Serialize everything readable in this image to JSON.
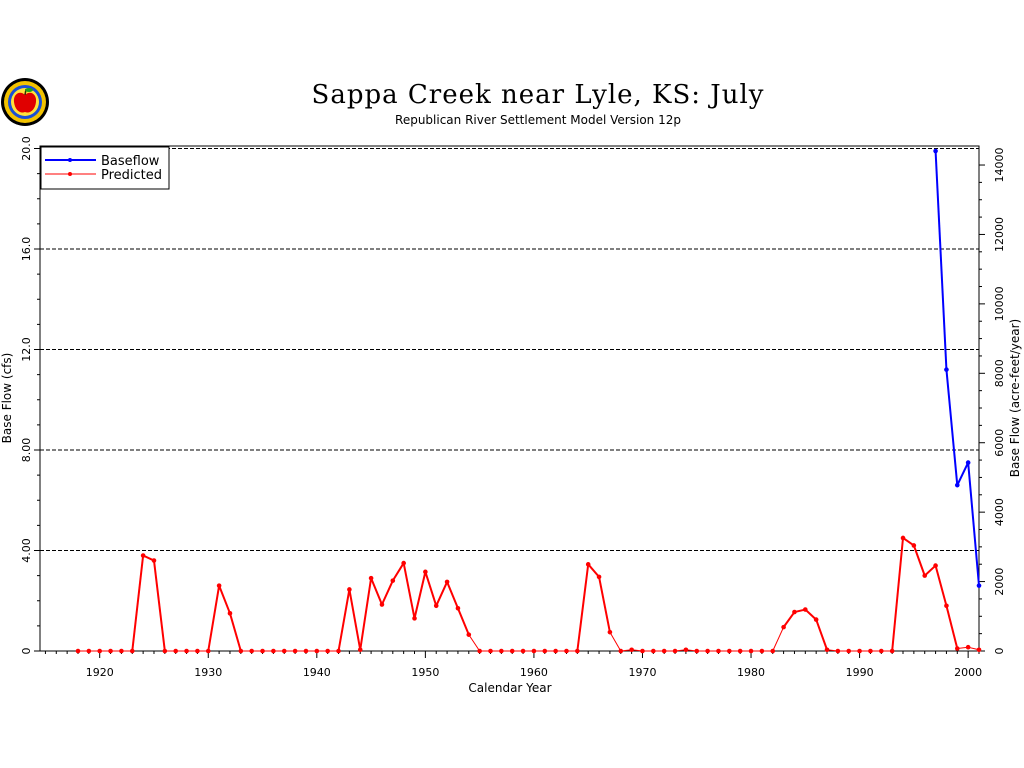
{
  "chart_data": {
    "type": "line",
    "title": "Sappa Creek near Lyle, KS: July",
    "subtitle": "Republican River Settlement Model Version 12p",
    "xlabel": "Calendar Year",
    "ylabel": "Base Flow (cfs)",
    "y2label": "Base Flow (acre-feet/year)",
    "xlim": [
      1914.5,
      2001
    ],
    "ylim": [
      0,
      20.1
    ],
    "y2lim": [
      0,
      14548
    ],
    "x_ticks": [
      "1920",
      "1930",
      "1940",
      "1950",
      "1960",
      "1970",
      "1980",
      "1990",
      "2000"
    ],
    "y_ticks": [
      "0",
      "4.00",
      "8.00",
      "12.0",
      "16.0",
      "20.0"
    ],
    "y2_ticks": [
      "0",
      "2000",
      "4000",
      "6000",
      "8000",
      "10000",
      "12000",
      "14000"
    ],
    "grid": "horizontal dashed at y ticks",
    "legend_position": "top-left",
    "series": [
      {
        "name": "Baseflow",
        "color": "#0000ff",
        "x": [
          1997,
          1998,
          1999,
          2000,
          2001
        ],
        "y": [
          19.9,
          11.2,
          6.6,
          7.5,
          2.6
        ]
      },
      {
        "name": "Predicted",
        "color": "#ff0000",
        "x": [
          1918,
          1919,
          1920,
          1921,
          1922,
          1923,
          1924,
          1925,
          1926,
          1927,
          1928,
          1929,
          1930,
          1931,
          1932,
          1933,
          1934,
          1935,
          1936,
          1937,
          1938,
          1939,
          1940,
          1941,
          1942,
          1943,
          1944,
          1945,
          1946,
          1947,
          1948,
          1949,
          1950,
          1951,
          1952,
          1953,
          1954,
          1955,
          1956,
          1957,
          1958,
          1959,
          1960,
          1961,
          1962,
          1963,
          1964,
          1965,
          1966,
          1967,
          1968,
          1969,
          1970,
          1971,
          1972,
          1973,
          1974,
          1975,
          1976,
          1977,
          1978,
          1979,
          1980,
          1981,
          1982,
          1983,
          1984,
          1985,
          1986,
          1987,
          1988,
          1989,
          1990,
          1991,
          1992,
          1993,
          1994,
          1995,
          1996,
          1997,
          1998,
          1999,
          2000,
          2001
        ],
        "y": [
          0,
          0,
          0,
          0,
          0,
          0,
          3.8,
          3.6,
          0,
          0,
          0,
          0,
          0,
          2.6,
          1.5,
          0,
          0,
          0,
          0,
          0,
          0,
          0,
          0,
          0,
          0,
          2.45,
          0.05,
          2.9,
          1.85,
          2.8,
          3.5,
          1.3,
          3.15,
          1.8,
          2.75,
          1.7,
          0.65,
          0,
          0,
          0,
          0,
          0,
          0,
          0,
          0,
          0,
          0,
          3.45,
          2.95,
          0.75,
          0,
          0.05,
          0,
          0,
          0,
          0,
          0.05,
          0,
          0,
          0,
          0,
          0,
          0,
          0,
          0,
          0.95,
          1.55,
          1.65,
          1.25,
          0.05,
          0,
          0,
          0,
          0,
          0,
          0,
          4.5,
          4.2,
          3.0,
          3.4,
          1.8,
          0.1,
          0.15,
          0.05
        ]
      }
    ]
  }
}
